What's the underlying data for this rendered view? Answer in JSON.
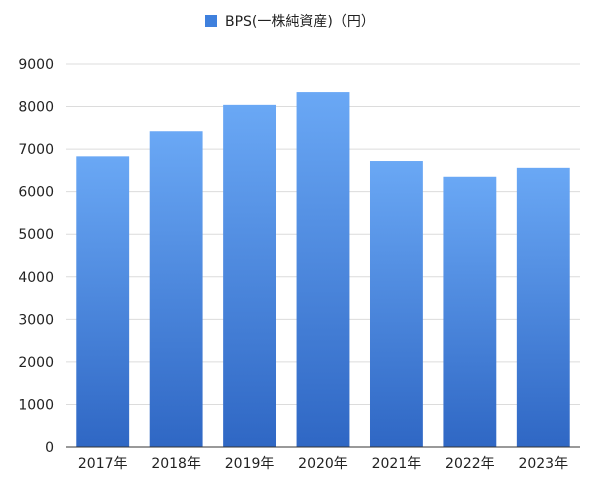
{
  "chart_data": {
    "type": "bar",
    "categories": [
      "2017年",
      "2018年",
      "2019年",
      "2020年",
      "2021年",
      "2022年",
      "2023年"
    ],
    "series": [
      {
        "name": "BPS(一株純資産)（円）",
        "values": [
          6830,
          7420,
          8040,
          8340,
          6720,
          6350,
          6560
        ]
      }
    ],
    "ylim": [
      0,
      9000
    ],
    "yticks": [
      0,
      1000,
      2000,
      3000,
      4000,
      5000,
      6000,
      7000,
      8000,
      9000
    ],
    "grid": true,
    "legend_position": "top-center",
    "colors": {
      "bar_top": "#6aa8f5",
      "bar_bottom": "#2f67c4",
      "legend_swatch": "#3f80dd"
    }
  }
}
